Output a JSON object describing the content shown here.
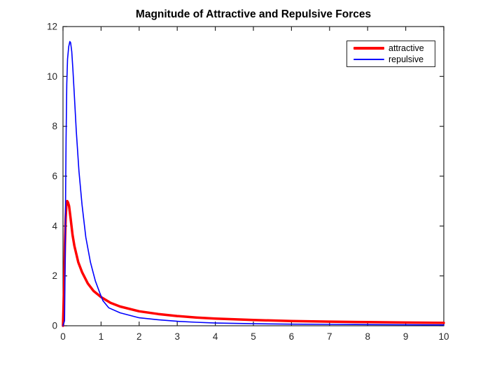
{
  "figure": {
    "background_color": "#FFFFFF",
    "axes_color": "#262626",
    "title_color": "#000000"
  },
  "chart_data": {
    "type": "line",
    "title": "Magnitude of Attractive and Repulsive Forces",
    "xlabel": "",
    "ylabel": "",
    "xlim": [
      0,
      10
    ],
    "ylim": [
      0,
      12
    ],
    "xticks": [
      0,
      1,
      2,
      3,
      4,
      5,
      6,
      7,
      8,
      9,
      10
    ],
    "yticks": [
      0,
      2,
      4,
      6,
      8,
      10,
      12
    ],
    "grid": false,
    "legend": {
      "position": "top-right",
      "entries": [
        "attractive",
        "repulsive"
      ]
    },
    "series": [
      {
        "name": "attractive",
        "color": "#FF0000",
        "line_width": 3.5,
        "x": [
          0,
          0.03,
          0.05,
          0.07,
          0.09,
          0.11,
          0.13,
          0.16,
          0.2,
          0.25,
          0.3,
          0.4,
          0.5,
          0.65,
          0.8,
          1.0,
          1.25,
          1.5,
          2.0,
          2.5,
          3.0,
          3.5,
          4.0,
          4.5,
          5.0,
          6.0,
          7.0,
          8.0,
          9.0,
          10.0
        ],
        "y": [
          0,
          1.6,
          3.2,
          4.3,
          4.9,
          5.0,
          4.95,
          4.8,
          4.3,
          3.65,
          3.2,
          2.55,
          2.15,
          1.7,
          1.4,
          1.15,
          0.92,
          0.77,
          0.58,
          0.47,
          0.39,
          0.33,
          0.29,
          0.26,
          0.23,
          0.19,
          0.165,
          0.145,
          0.13,
          0.115
        ]
      },
      {
        "name": "repulsive",
        "color": "#0000FF",
        "line_width": 1.6,
        "x": [
          0,
          0.04,
          0.05,
          0.06,
          0.07,
          0.08,
          0.1,
          0.12,
          0.15,
          0.18,
          0.2,
          0.23,
          0.26,
          0.3,
          0.35,
          0.42,
          0.5,
          0.6,
          0.72,
          0.85,
          0.97,
          1.05,
          1.2,
          1.5,
          2.0,
          2.5,
          3.0,
          3.5,
          4.0,
          4.5,
          5.0,
          6.0,
          7.0,
          8.0,
          9.0,
          10.0
        ],
        "y": [
          0,
          0.2,
          1.5,
          3.5,
          5.5,
          7.5,
          9.7,
          10.7,
          11.2,
          11.4,
          11.35,
          11.0,
          10.3,
          9.2,
          7.8,
          6.2,
          4.85,
          3.55,
          2.55,
          1.8,
          1.3,
          1.0,
          0.72,
          0.52,
          0.32,
          0.24,
          0.18,
          0.14,
          0.11,
          0.095,
          0.08,
          0.065,
          0.055,
          0.047,
          0.04,
          0.035
        ]
      }
    ]
  }
}
